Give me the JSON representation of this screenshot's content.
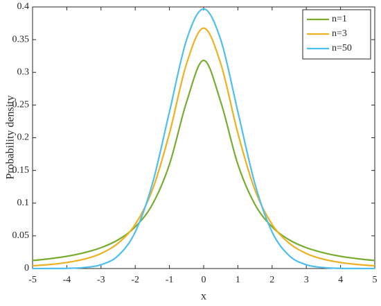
{
  "chart_data": {
    "type": "line",
    "xlabel": "x",
    "ylabel": "Probability density",
    "x": [
      -5,
      -4.5,
      -4,
      -3.5,
      -3,
      -2.5,
      -2,
      -1.5,
      -1,
      -0.5,
      0,
      0.5,
      1,
      1.5,
      2,
      2.5,
      3,
      3.5,
      4,
      4.5,
      5
    ],
    "series": [
      {
        "name": "n=1",
        "color": "#77ac30",
        "values": [
          0.0122,
          0.015,
          0.0187,
          0.0241,
          0.0318,
          0.0439,
          0.0637,
          0.0979,
          0.1592,
          0.2546,
          0.3183,
          0.2546,
          0.1592,
          0.0979,
          0.0637,
          0.0439,
          0.0318,
          0.0241,
          0.0187,
          0.015,
          0.0122
        ]
      },
      {
        "name": "n=3",
        "color": "#edb120",
        "values": [
          0.0042,
          0.0061,
          0.0092,
          0.0142,
          0.023,
          0.0387,
          0.0675,
          0.12,
          0.2067,
          0.3132,
          0.3676,
          0.3132,
          0.2067,
          0.12,
          0.0675,
          0.0387,
          0.023,
          0.0142,
          0.0092,
          0.0061,
          0.0042
        ]
      },
      {
        "name": "n=50",
        "color": "#4dbeee",
        "values": [
          0.0,
          0.0001,
          0.0003,
          0.0015,
          0.0058,
          0.0197,
          0.0558,
          0.1292,
          0.2396,
          0.3496,
          0.397,
          0.3496,
          0.2396,
          0.1292,
          0.0558,
          0.0197,
          0.0058,
          0.0015,
          0.0003,
          0.0001,
          0.0
        ]
      }
    ],
    "xlim": [
      -5,
      5
    ],
    "xticks": [
      -5,
      -4,
      -3,
      -2,
      -1,
      0,
      1,
      2,
      3,
      4,
      5
    ],
    "ylim": [
      0,
      0.4
    ],
    "yticks": [
      0,
      0.05,
      0.1,
      0.15,
      0.2,
      0.25,
      0.3,
      0.35,
      0.4
    ],
    "grid": false,
    "legend": "upper-right"
  }
}
